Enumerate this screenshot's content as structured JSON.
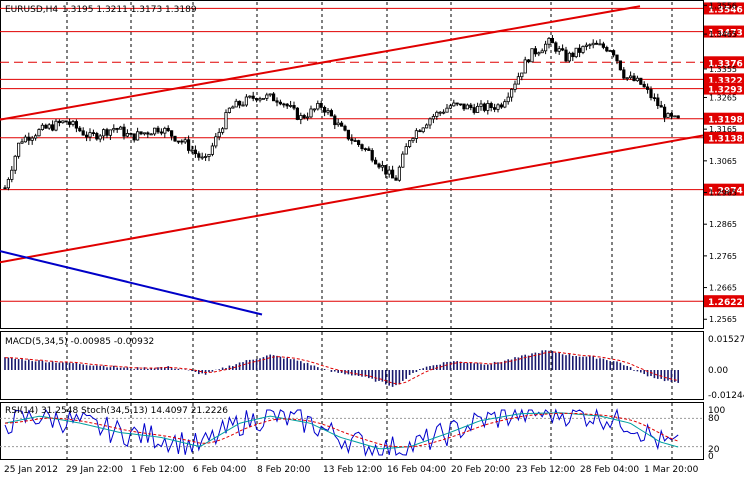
{
  "header": {
    "symbol_tf": "EURUSD,H4",
    "ohlc": "1.3195 1.3211 1.3173 1.3189"
  },
  "macd": {
    "label": "MACD(5,34,5) -0.00985 -0.00932",
    "ticks": [
      "0.01527",
      "0.00",
      "-0.01244"
    ]
  },
  "rsi_stoch": {
    "label": "RSI(14) 31.2548  Stoch(34,5,13) 14.4097 21.2226",
    "ticks": [
      "100",
      "80",
      "20",
      "0"
    ]
  },
  "x_labels": [
    "25 Jan 2012",
    "29 Jan 22:00",
    "1 Feb 12:00",
    "6 Feb 04:00",
    "8 Feb 20:00",
    "13 Feb 12:00",
    "16 Feb 04:00",
    "20 Feb 20:00",
    "23 Feb 12:00",
    "28 Feb 04:00",
    "1 Mar 20:00"
  ],
  "chart_data": {
    "type": "candlestick",
    "y_axis_ticks": [
      "1.3556",
      "1.3465",
      "1.3355",
      "1.3265",
      "1.3165",
      "1.3065",
      "1.2965",
      "1.2865",
      "1.2765",
      "1.2665",
      "1.2565"
    ],
    "horizontal_levels": [
      {
        "label": "1.3546",
        "value": 1.3546,
        "style": "solid"
      },
      {
        "label": "1.3473",
        "value": 1.3473,
        "style": "solid"
      },
      {
        "label": "1.3376",
        "value": 1.3376,
        "style": "dashed"
      },
      {
        "label": "1.3322",
        "value": 1.3322,
        "style": "solid"
      },
      {
        "label": "1.3293",
        "value": 1.3293,
        "style": "solid"
      },
      {
        "label": "1.3198",
        "value": 1.3198,
        "style": "solid"
      },
      {
        "label": "1.3138",
        "value": 1.3138,
        "style": "solid"
      },
      {
        "label": "1.2974",
        "value": 1.2974,
        "style": "solid"
      },
      {
        "label": "1.2622",
        "value": 1.2622,
        "style": "solid"
      }
    ],
    "price_range": [
      1.255,
      1.356
    ],
    "colors": {
      "levels": "#e00000",
      "trend": "#e00000",
      "blue_line": "#0000c8",
      "candles": "#000000",
      "macd_signal": "#e00000",
      "stoch_signal": "#e00000",
      "stoch_main": "#00a0a0",
      "rsi": "#0000cc"
    }
  }
}
